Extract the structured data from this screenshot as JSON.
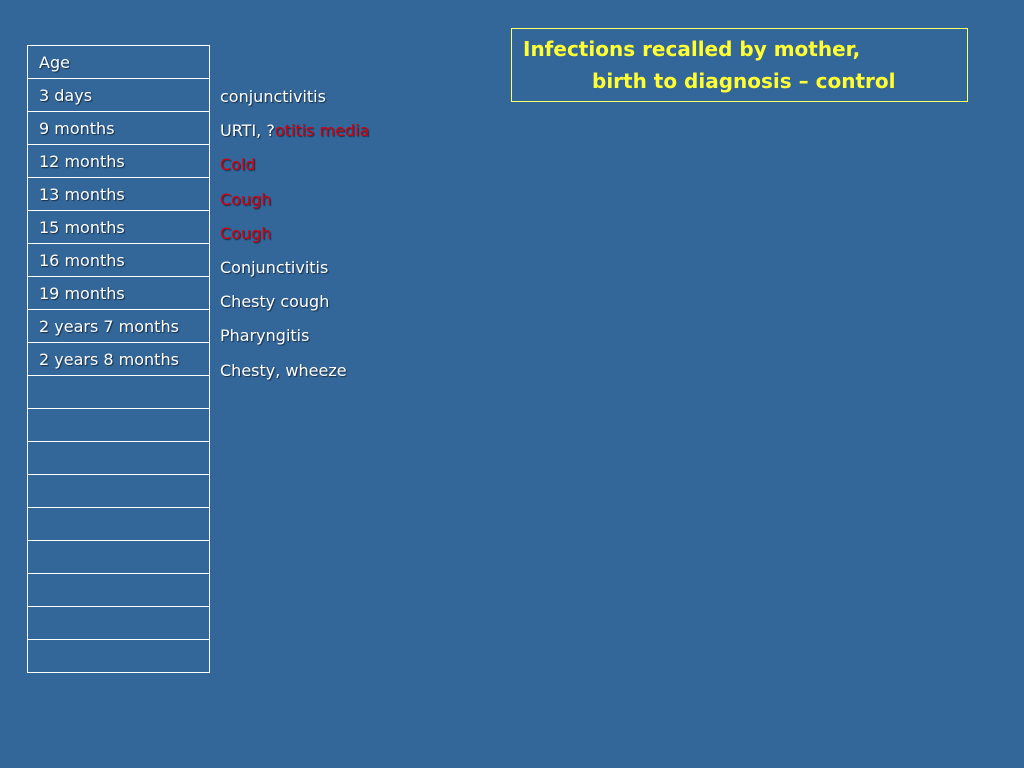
{
  "title": {
    "line1": "Infections recalled by mother,",
    "line2": "birth to diagnosis – control"
  },
  "table": {
    "header": "Age",
    "ages": [
      "3 days",
      "9 months",
      "12 months",
      "13 months",
      "15 months",
      "16 months",
      "19 months",
      "2 years 7 months",
      "2 years 8 months",
      "",
      "",
      "",
      "",
      "",
      "",
      "",
      "",
      ""
    ]
  },
  "infections": [
    {
      "text": "conjunctivitis"
    },
    {
      "text": "URTI, ?",
      "highlight": "otitis media"
    },
    {
      "highlight": "Cold"
    },
    {
      "highlight": "Cough"
    },
    {
      "highlight": "Cough"
    },
    {
      "text": "Conjunctivitis"
    },
    {
      "text": "Chesty cough"
    },
    {
      "text": "Pharyngitis"
    },
    {
      "text": "Chesty, wheeze"
    }
  ],
  "colors": {
    "background": "#336699",
    "title": "#ffff33",
    "highlight": "#d4000f",
    "text": "#ffffff"
  }
}
